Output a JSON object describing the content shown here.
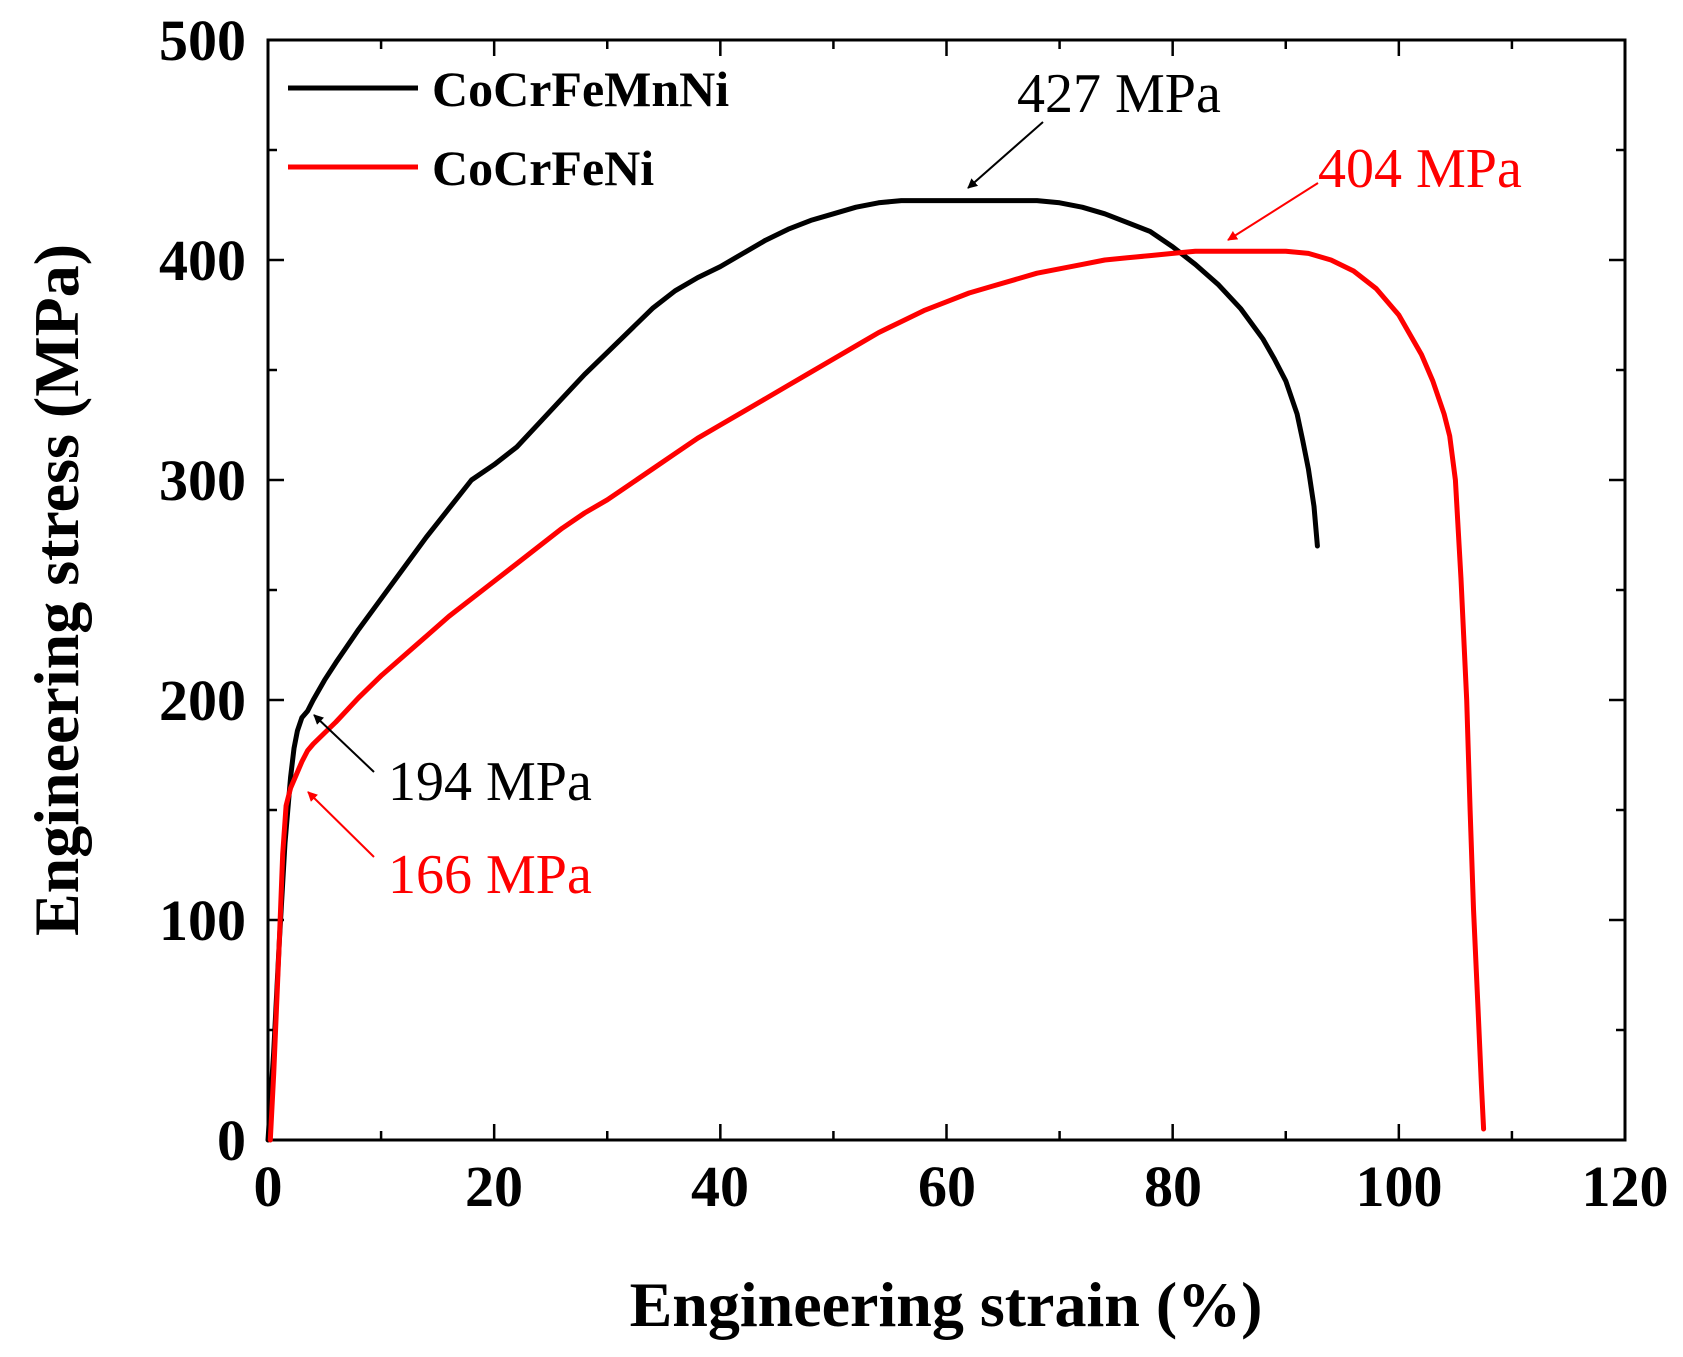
{
  "chart_data": {
    "type": "line",
    "title": "",
    "xlabel": "Engineering strain (%)",
    "ylabel": "Engineering stress (MPa)",
    "xlim": [
      0,
      120
    ],
    "ylim": [
      0,
      500
    ],
    "x_ticks": [
      0,
      20,
      40,
      60,
      80,
      100,
      120
    ],
    "y_ticks": [
      0,
      100,
      200,
      300,
      400,
      500
    ],
    "x_tick_labels": [
      "0",
      "20",
      "40",
      "60",
      "80",
      "100",
      "120"
    ],
    "y_tick_labels": [
      "0",
      "100",
      "200",
      "300",
      "400",
      "500"
    ],
    "grid": false,
    "legend_position": "top-left",
    "series": [
      {
        "name": "CoCrFeMnNi",
        "color": "#000000",
        "x": [
          0,
          0.5,
          1,
          1.5,
          2,
          2.3,
          2.6,
          3,
          3.5,
          4,
          5,
          6,
          8,
          10,
          12,
          14,
          16,
          18,
          20,
          22,
          24,
          26,
          28,
          30,
          32,
          34,
          36,
          38,
          40,
          42,
          44,
          46,
          48,
          50,
          52,
          54,
          56,
          58,
          60,
          62,
          64,
          66,
          68,
          70,
          72,
          74,
          76,
          78,
          80,
          82,
          84,
          86,
          88,
          89,
          90,
          91,
          91.5,
          92,
          92.5,
          92.8
        ],
        "y": [
          0,
          40,
          90,
          135,
          165,
          178,
          186,
          192,
          195,
          200,
          209,
          217,
          232,
          246,
          260,
          274,
          287,
          300,
          307,
          315,
          326,
          337,
          348,
          358,
          368,
          378,
          386,
          392,
          397,
          403,
          409,
          414,
          418,
          421,
          424,
          426,
          427,
          427,
          427,
          427,
          427,
          427,
          427,
          426,
          424,
          421,
          417,
          413,
          406,
          398,
          389,
          378,
          364,
          355,
          345,
          330,
          318,
          305,
          288,
          270
        ]
      },
      {
        "name": "CoCrFeNi",
        "color": "#ff0000",
        "x": [
          0.2,
          0.5,
          1,
          1.3,
          1.6,
          2,
          2.5,
          3,
          3.5,
          4,
          5,
          6,
          8,
          10,
          12,
          14,
          16,
          18,
          20,
          22,
          24,
          26,
          28,
          30,
          32,
          34,
          36,
          38,
          40,
          42,
          44,
          46,
          48,
          50,
          52,
          54,
          56,
          58,
          60,
          62,
          64,
          66,
          68,
          70,
          72,
          74,
          76,
          78,
          80,
          82,
          84,
          86,
          88,
          90,
          92,
          94,
          96,
          98,
          100,
          102,
          103,
          104,
          104.5,
          105,
          105.5,
          106,
          106.3,
          106.6,
          107,
          107.3,
          107.5
        ],
        "y": [
          0,
          30,
          90,
          130,
          152,
          160,
          166,
          172,
          177,
          180,
          185,
          190,
          201,
          211,
          220,
          229,
          238,
          246,
          254,
          262,
          270,
          278,
          285,
          291,
          298,
          305,
          312,
          319,
          325,
          331,
          337,
          343,
          349,
          355,
          361,
          367,
          372,
          377,
          381,
          385,
          388,
          391,
          394,
          396,
          398,
          400,
          401,
          402,
          403,
          404,
          404,
          404,
          404,
          404,
          403,
          400,
          395,
          387,
          375,
          357,
          345,
          330,
          320,
          300,
          255,
          200,
          150,
          105,
          60,
          25,
          5
        ]
      }
    ],
    "annotations": [
      {
        "text": "427 MPa",
        "color": "#000000",
        "x": 60.5,
        "y": 426.5
      },
      {
        "text": "404 MPa",
        "color": "#ff0000",
        "x": 84.5,
        "y": 405
      },
      {
        "text": "194 MPa",
        "color": "#000000",
        "x": 4,
        "y": 194
      },
      {
        "text": "166 MPa",
        "color": "#ff0000",
        "x": 3,
        "y": 158
      }
    ]
  }
}
